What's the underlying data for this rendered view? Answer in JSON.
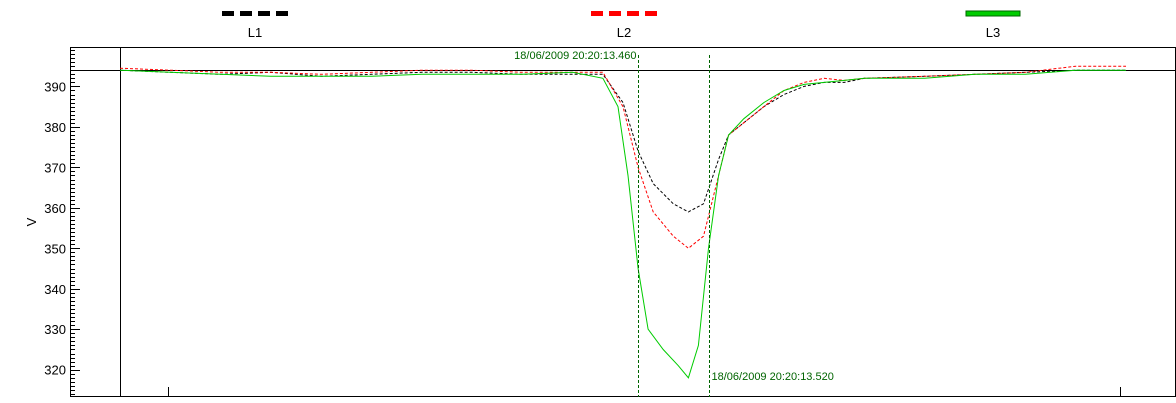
{
  "chart_data": {
    "type": "line",
    "title": "",
    "xlabel": "",
    "ylabel": "V",
    "ylim": [
      314,
      399
    ],
    "yticks": [
      320,
      330,
      340,
      350,
      360,
      370,
      380,
      390
    ],
    "grid": false,
    "legend_position": "top",
    "reference_line": {
      "y": 394,
      "color": "#000000"
    },
    "cursors": [
      {
        "x": 51.5,
        "label": "18/06/2009 20:20:13.460",
        "color": "#006400"
      },
      {
        "x": 58.5,
        "label": "18/06/2009 20:20:13.520",
        "color": "#006400"
      }
    ],
    "series": [
      {
        "name": "L1",
        "color": "#000000",
        "style": "dashed",
        "points": [
          [
            0,
            394
          ],
          [
            5,
            393.5
          ],
          [
            10,
            393
          ],
          [
            15,
            393.5
          ],
          [
            20,
            392.5
          ],
          [
            25,
            393
          ],
          [
            30,
            393.5
          ],
          [
            35,
            393.5
          ],
          [
            40,
            393
          ],
          [
            45,
            393
          ],
          [
            48,
            393
          ],
          [
            50,
            386
          ],
          [
            51.5,
            374
          ],
          [
            53,
            366
          ],
          [
            55,
            361
          ],
          [
            56.5,
            359
          ],
          [
            58,
            361
          ],
          [
            59.5,
            372
          ],
          [
            60.5,
            378
          ],
          [
            62,
            381
          ],
          [
            64,
            385
          ],
          [
            66,
            388
          ],
          [
            68,
            390
          ],
          [
            70,
            391
          ],
          [
            72,
            391
          ],
          [
            74,
            392
          ],
          [
            80,
            392.5
          ],
          [
            85,
            393
          ],
          [
            90,
            393.5
          ],
          [
            95,
            394
          ],
          [
            100,
            394
          ]
        ]
      },
      {
        "name": "L2",
        "color": "#ff0000",
        "style": "dashed",
        "points": [
          [
            0,
            394.5
          ],
          [
            5,
            394
          ],
          [
            10,
            393.5
          ],
          [
            15,
            393.5
          ],
          [
            20,
            393
          ],
          [
            25,
            393.5
          ],
          [
            30,
            394
          ],
          [
            35,
            394
          ],
          [
            40,
            393.5
          ],
          [
            45,
            393.5
          ],
          [
            48,
            393.5
          ],
          [
            50,
            385
          ],
          [
            51.5,
            370
          ],
          [
            53,
            359
          ],
          [
            55,
            353
          ],
          [
            56.5,
            350
          ],
          [
            58,
            353
          ],
          [
            59.5,
            368
          ],
          [
            60.5,
            378
          ],
          [
            62,
            381
          ],
          [
            64,
            385
          ],
          [
            66,
            389
          ],
          [
            68,
            391
          ],
          [
            70,
            392
          ],
          [
            72,
            391.5
          ],
          [
            74,
            392
          ],
          [
            80,
            392.5
          ],
          [
            85,
            393
          ],
          [
            90,
            393.5
          ],
          [
            95,
            395
          ],
          [
            100,
            395
          ]
        ]
      },
      {
        "name": "L3",
        "color": "#00cc00",
        "style": "solid",
        "points": [
          [
            0,
            394
          ],
          [
            5,
            393.5
          ],
          [
            10,
            393
          ],
          [
            15,
            392.5
          ],
          [
            20,
            392.5
          ],
          [
            25,
            392.5
          ],
          [
            30,
            393
          ],
          [
            35,
            393
          ],
          [
            40,
            393
          ],
          [
            45,
            393.5
          ],
          [
            48,
            392
          ],
          [
            49.5,
            385
          ],
          [
            50.5,
            368
          ],
          [
            51.5,
            345
          ],
          [
            52.5,
            330
          ],
          [
            54,
            325
          ],
          [
            55.5,
            321
          ],
          [
            56.5,
            318
          ],
          [
            57.5,
            326
          ],
          [
            58.5,
            350
          ],
          [
            59.5,
            368
          ],
          [
            60.5,
            378
          ],
          [
            62,
            382
          ],
          [
            64,
            386
          ],
          [
            66,
            389
          ],
          [
            68,
            390.5
          ],
          [
            70,
            391
          ],
          [
            72,
            391.5
          ],
          [
            74,
            392
          ],
          [
            80,
            392
          ],
          [
            85,
            393
          ],
          [
            90,
            393
          ],
          [
            95,
            394
          ],
          [
            100,
            394
          ]
        ]
      }
    ]
  }
}
